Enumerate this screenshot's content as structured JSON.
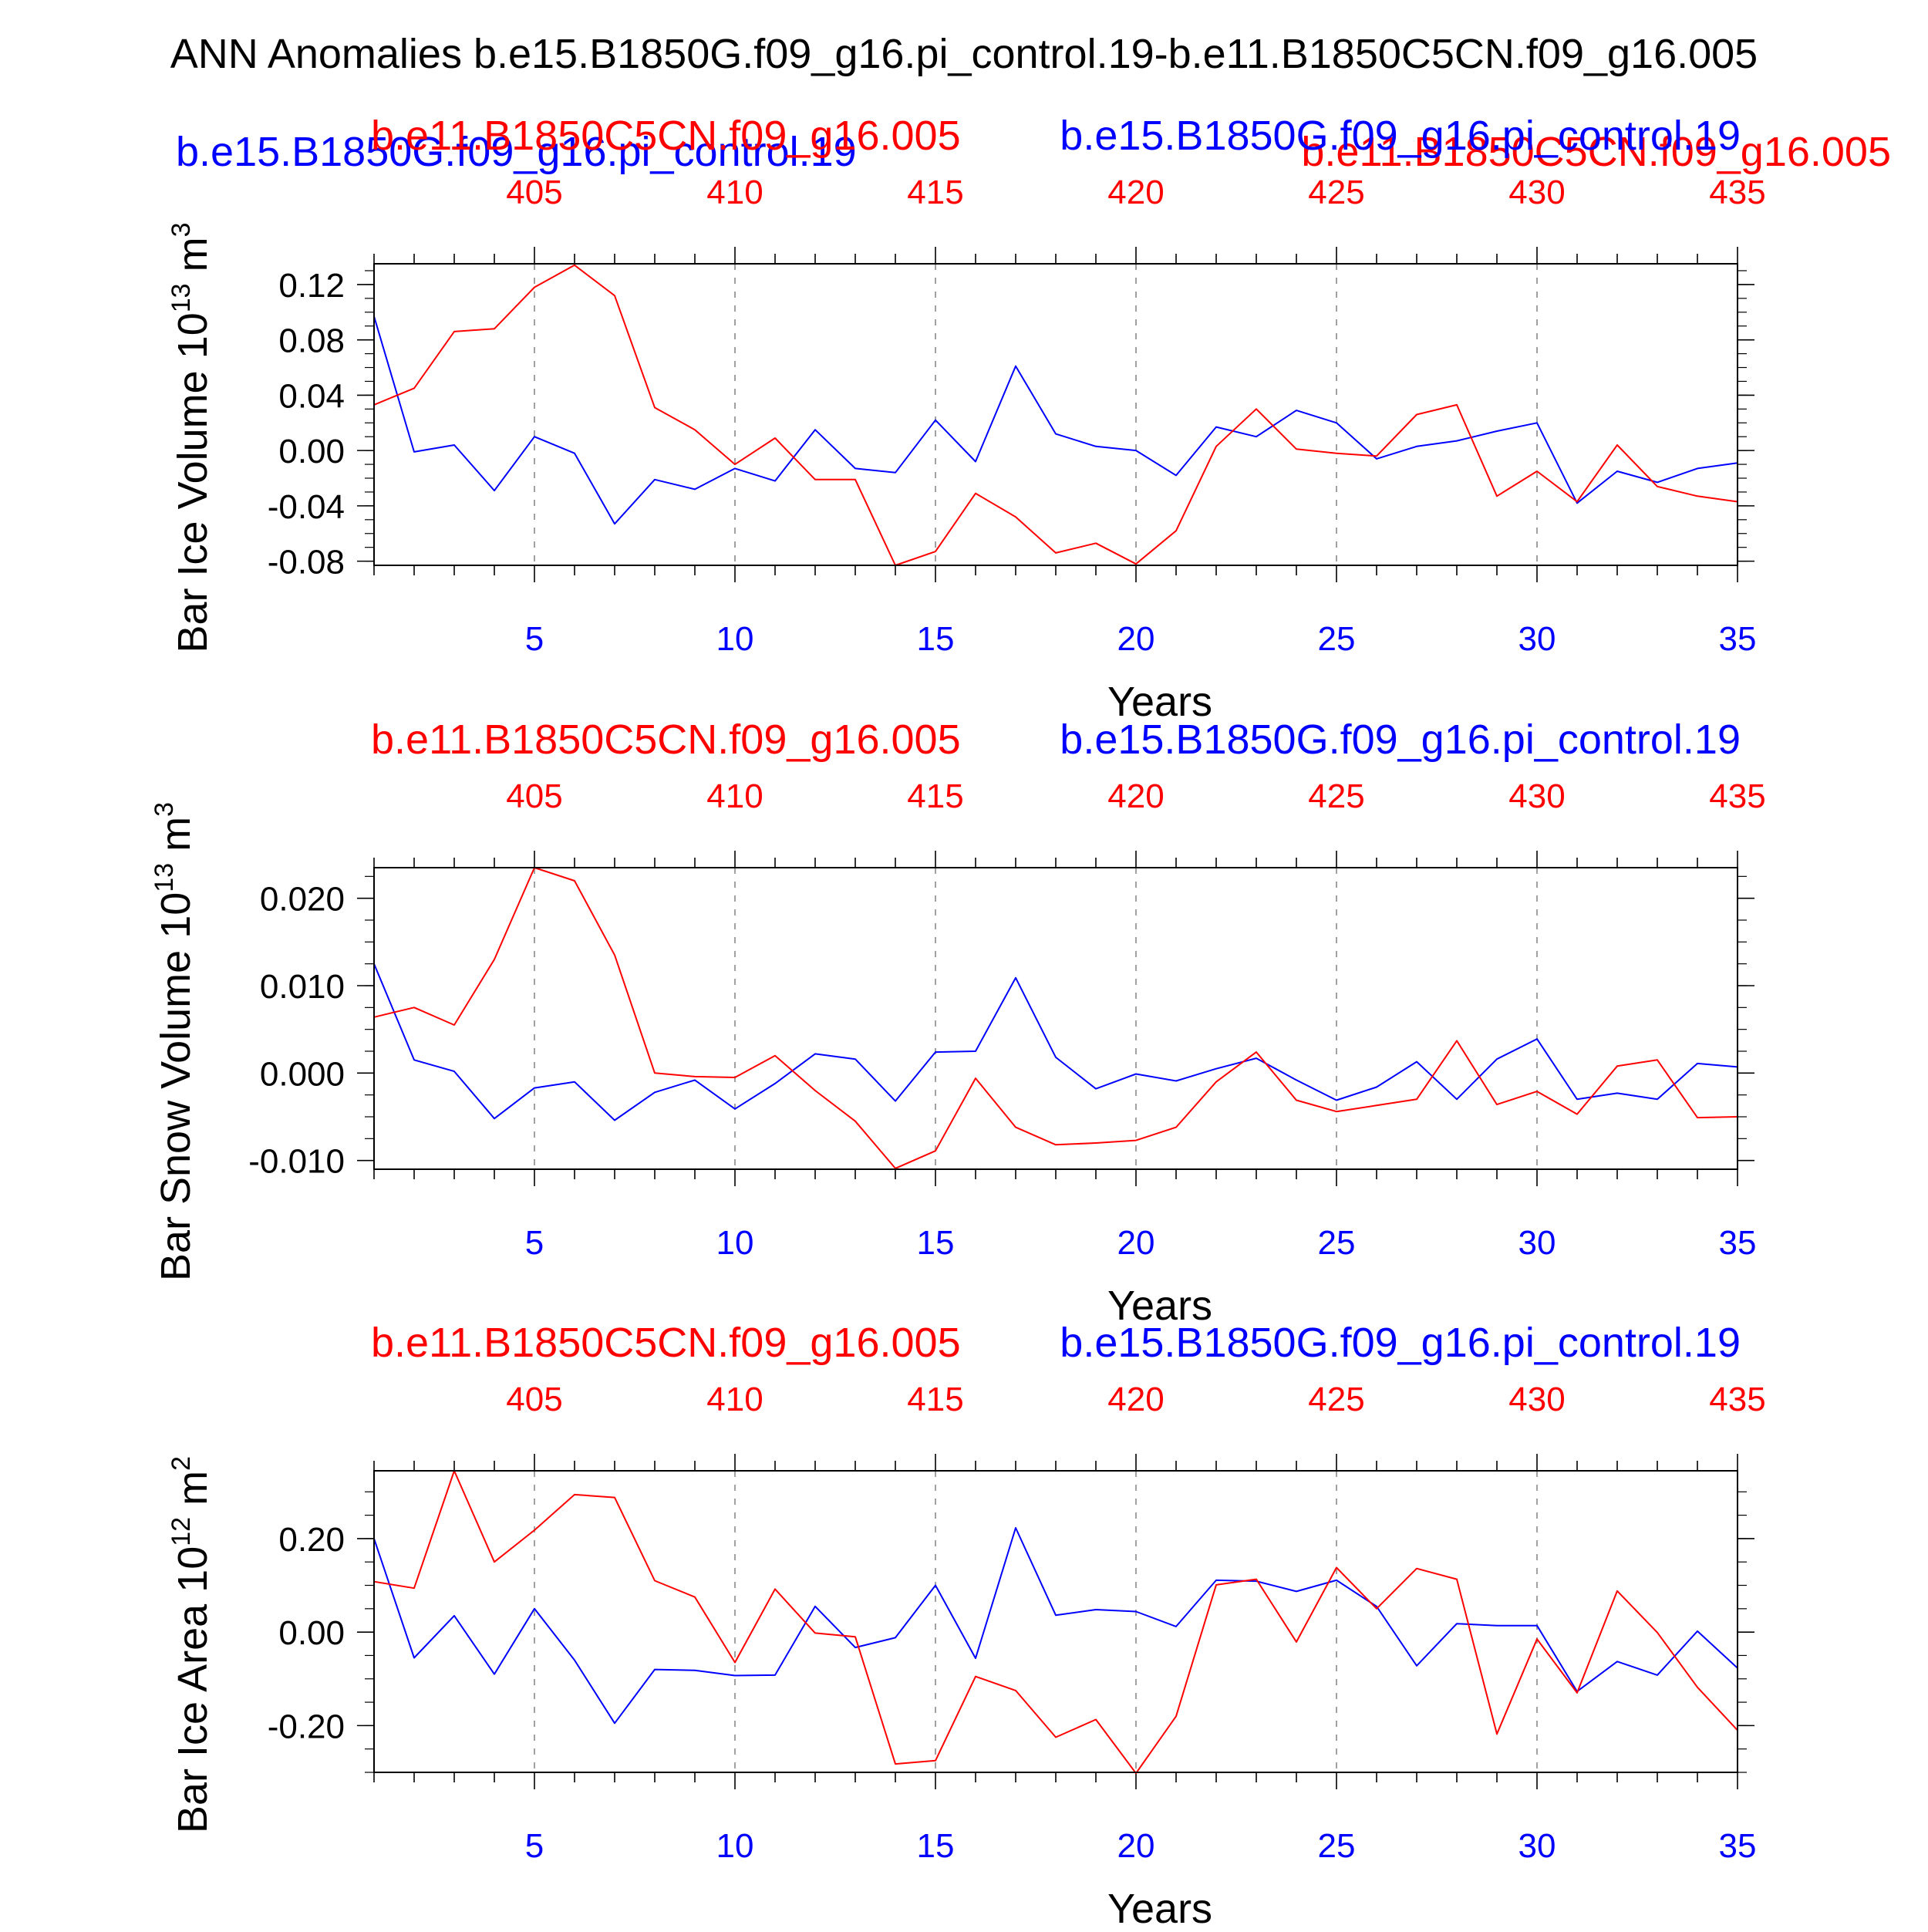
{
  "main_title": "ANN Anomalies b.e15.B1850G.f09_g16.pi_control.19-b.e11.B1850C5CN.f09_g16.005",
  "colors": {
    "control": "#0000ff",
    "reference": "#ff0000",
    "axis": "#000000",
    "grid": "#a0a0a0"
  },
  "legend_overlay": {
    "control_label": "b.e15.B1850G.f09_g16.pi_control.19",
    "reference_label": "b.e11.B1850C5CN.f09_g16.005"
  },
  "chart_data": [
    {
      "type": "line",
      "ylabel": "Bar Ice Volume 10",
      "ylabel_exp": "13",
      "ylabel_unit": " m",
      "ylabel_unit_exp": "3",
      "xlabel": "Years",
      "ylim": [
        -0.083,
        0.135
      ],
      "yticks": [
        "0.12",
        "0.08",
        "0.04",
        "0.00",
        "-0.04",
        "-0.08"
      ],
      "xlim": [
        1,
        35
      ],
      "bottom_ticks": [
        "5",
        "10",
        "15",
        "20",
        "25",
        "30",
        "35"
      ],
      "top_ticks": [
        "405",
        "410",
        "415",
        "420",
        "425",
        "430",
        "435"
      ],
      "top_label": "b.e11.B1850C5CN.f09_g16.005",
      "top_label_right": "b.e15.B1850G.f09_g16.pi_control.19",
      "series": [
        {
          "name": "b.e15.B1850G.f09_g16.pi_control.19",
          "color": "#0000ff",
          "values": [
            0.097,
            -0.001,
            0.004,
            -0.029,
            0.01,
            -0.002,
            -0.053,
            -0.021,
            -0.028,
            -0.013,
            -0.022,
            0.015,
            -0.013,
            -0.016,
            0.022,
            -0.008,
            0.061,
            0.012,
            0.003,
            0.0,
            -0.018,
            0.017,
            0.01,
            0.029,
            0.02,
            -0.006,
            0.003,
            0.007,
            0.014,
            0.02,
            -0.038,
            -0.015,
            -0.023,
            -0.013,
            -0.009
          ]
        },
        {
          "name": "b.e11.B1850C5CN.f09_g16.005",
          "color": "#ff0000",
          "values": [
            0.033,
            0.045,
            0.086,
            0.088,
            0.118,
            0.134,
            0.112,
            0.031,
            0.015,
            -0.01,
            0.009,
            -0.021,
            -0.021,
            -0.083,
            -0.073,
            -0.031,
            -0.048,
            -0.074,
            -0.067,
            -0.082,
            -0.058,
            0.003,
            0.03,
            0.001,
            -0.002,
            -0.004,
            0.026,
            0.033,
            -0.033,
            -0.015,
            -0.037,
            0.004,
            -0.026,
            -0.033,
            -0.037
          ]
        }
      ]
    },
    {
      "type": "line",
      "ylabel": "Bar Snow Volume 10",
      "ylabel_exp": "13",
      "ylabel_unit": " m",
      "ylabel_unit_exp": "3",
      "xlabel": "Years",
      "ylim": [
        -0.011,
        0.0235
      ],
      "yticks": [
        "0.020",
        "0.010",
        "0.000",
        "-0.010"
      ],
      "xlim": [
        1,
        35
      ],
      "bottom_ticks": [
        "5",
        "10",
        "15",
        "20",
        "25",
        "30",
        "35"
      ],
      "top_ticks": [
        "405",
        "410",
        "415",
        "420",
        "425",
        "430",
        "435"
      ],
      "top_label": "b.e11.B1850C5CN.f09_g16.005",
      "top_label_right": "b.e15.B1850G.f09_g16.pi_control.19",
      "series": [
        {
          "name": "b.e15.B1850G.f09_g16.pi_control.19",
          "color": "#0000ff",
          "values": [
            0.0125,
            0.0015,
            0.0002,
            -0.0052,
            -0.0017,
            -0.001,
            -0.0054,
            -0.0022,
            -0.0008,
            -0.0041,
            -0.0012,
            0.0022,
            0.0016,
            -0.0032,
            0.0024,
            0.0025,
            0.0109,
            0.0018,
            -0.0018,
            -0.0001,
            -0.0009,
            0.0005,
            0.0017,
            -0.0008,
            -0.0031,
            -0.0016,
            0.0013,
            -0.003,
            0.0016,
            0.0039,
            -0.003,
            -0.0023,
            -0.003,
            0.0011,
            0.0007
          ]
        },
        {
          "name": "b.e11.B1850C5CN.f09_g16.005",
          "color": "#ff0000",
          "values": [
            0.0064,
            0.0075,
            0.0055,
            0.013,
            0.0235,
            0.022,
            0.0135,
            0.0,
            -0.0004,
            -0.0005,
            0.002,
            -0.002,
            -0.0055,
            -0.0109,
            -0.0089,
            -0.0006,
            -0.0062,
            -0.0082,
            -0.008,
            -0.0077,
            -0.0062,
            -0.001,
            0.0024,
            -0.0031,
            -0.0044,
            -0.0037,
            -0.003,
            0.0037,
            -0.0036,
            -0.0021,
            -0.0047,
            0.0008,
            0.0015,
            -0.0051,
            -0.005
          ]
        }
      ]
    },
    {
      "type": "line",
      "ylabel": "Bar Ice Area 10",
      "ylabel_exp": "12",
      "ylabel_unit": " m",
      "ylabel_unit_exp": "2",
      "xlabel": "Years",
      "ylim": [
        -0.3,
        0.345
      ],
      "yticks": [
        "0.20",
        "0.00",
        "-0.20"
      ],
      "xlim": [
        1,
        35
      ],
      "bottom_ticks": [
        "5",
        "10",
        "15",
        "20",
        "25",
        "30",
        "35"
      ],
      "top_ticks": [
        "405",
        "410",
        "415",
        "420",
        "425",
        "430",
        "435"
      ],
      "top_label": "b.e11.B1850C5CN.f09_g16.005",
      "top_label_right": "b.e15.B1850G.f09_g16.pi_control.19",
      "series": [
        {
          "name": "b.e15.B1850G.f09_g16.pi_control.19",
          "color": "#0000ff",
          "values": [
            0.2,
            -0.055,
            0.035,
            -0.09,
            0.05,
            -0.06,
            -0.195,
            -0.08,
            -0.082,
            -0.093,
            -0.092,
            0.055,
            -0.033,
            -0.012,
            0.1,
            -0.056,
            0.223,
            0.036,
            0.048,
            0.044,
            0.012,
            0.111,
            0.109,
            0.087,
            0.111,
            0.055,
            -0.072,
            0.018,
            0.014,
            0.014,
            -0.127,
            -0.063,
            -0.092,
            0.002,
            -0.077
          ]
        },
        {
          "name": "b.e11.B1850C5CN.f09_g16.005",
          "color": "#ff0000",
          "values": [
            0.108,
            0.094,
            0.345,
            0.15,
            0.218,
            0.294,
            0.288,
            0.11,
            0.075,
            -0.065,
            0.092,
            -0.002,
            -0.01,
            -0.282,
            -0.275,
            -0.095,
            -0.125,
            -0.225,
            -0.187,
            -0.302,
            -0.18,
            0.101,
            0.113,
            -0.021,
            0.138,
            0.05,
            0.136,
            0.113,
            -0.218,
            -0.015,
            -0.13,
            0.088,
            -0.001,
            -0.118,
            -0.21
          ]
        }
      ]
    }
  ]
}
